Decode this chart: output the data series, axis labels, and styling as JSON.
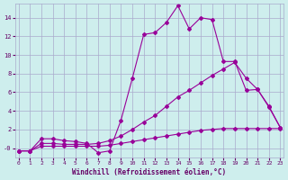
{
  "xlabel": "Windchill (Refroidissement éolien,°C)",
  "bg_color": "#ceeeed",
  "grid_color": "#aaaacc",
  "line_color": "#990099",
  "x_ticks": [
    0,
    1,
    2,
    3,
    4,
    5,
    6,
    7,
    8,
    9,
    10,
    11,
    12,
    13,
    14,
    15,
    16,
    17,
    18,
    19,
    20,
    21,
    22,
    23
  ],
  "y_ticks": [
    0,
    2,
    4,
    6,
    8,
    10,
    12,
    14
  ],
  "y_tick_labels": [
    "-0",
    "2",
    "4",
    "6",
    "8",
    "10",
    "12",
    "14"
  ],
  "x_min": 0,
  "x_max": 23,
  "y_min": -1.0,
  "y_max": 15.5,
  "line1_x": [
    0,
    1,
    2,
    3,
    4,
    5,
    6,
    7,
    8,
    9,
    10,
    11,
    12,
    13,
    14,
    15,
    16,
    17,
    18,
    19,
    20,
    21,
    22,
    23
  ],
  "line1_y": [
    -0.3,
    -0.3,
    1.0,
    1.0,
    0.8,
    0.7,
    0.5,
    -0.5,
    -0.3,
    3.0,
    7.5,
    12.2,
    12.4,
    13.5,
    15.3,
    12.8,
    14.0,
    13.8,
    9.3,
    9.3,
    6.2,
    6.3,
    4.5,
    2.2
  ],
  "line2_x": [
    0,
    1,
    2,
    3,
    4,
    5,
    6,
    7,
    8,
    9,
    10,
    11,
    12,
    13,
    14,
    15,
    16,
    17,
    18,
    19,
    20,
    21,
    22,
    23
  ],
  "line2_y": [
    -0.3,
    -0.3,
    0.5,
    0.5,
    0.4,
    0.4,
    0.4,
    0.5,
    0.8,
    1.3,
    2.0,
    2.8,
    3.5,
    4.5,
    5.5,
    6.2,
    7.0,
    7.8,
    8.5,
    9.2,
    7.5,
    6.3,
    4.4,
    2.2
  ],
  "line3_x": [
    0,
    1,
    2,
    3,
    4,
    5,
    6,
    7,
    8,
    9,
    10,
    11,
    12,
    13,
    14,
    15,
    16,
    17,
    18,
    19,
    20,
    21,
    22,
    23
  ],
  "line3_y": [
    -0.3,
    -0.3,
    0.2,
    0.2,
    0.2,
    0.2,
    0.2,
    0.2,
    0.3,
    0.5,
    0.7,
    0.9,
    1.1,
    1.3,
    1.5,
    1.7,
    1.9,
    2.0,
    2.1,
    2.1,
    2.1,
    2.1,
    2.1,
    2.1
  ]
}
